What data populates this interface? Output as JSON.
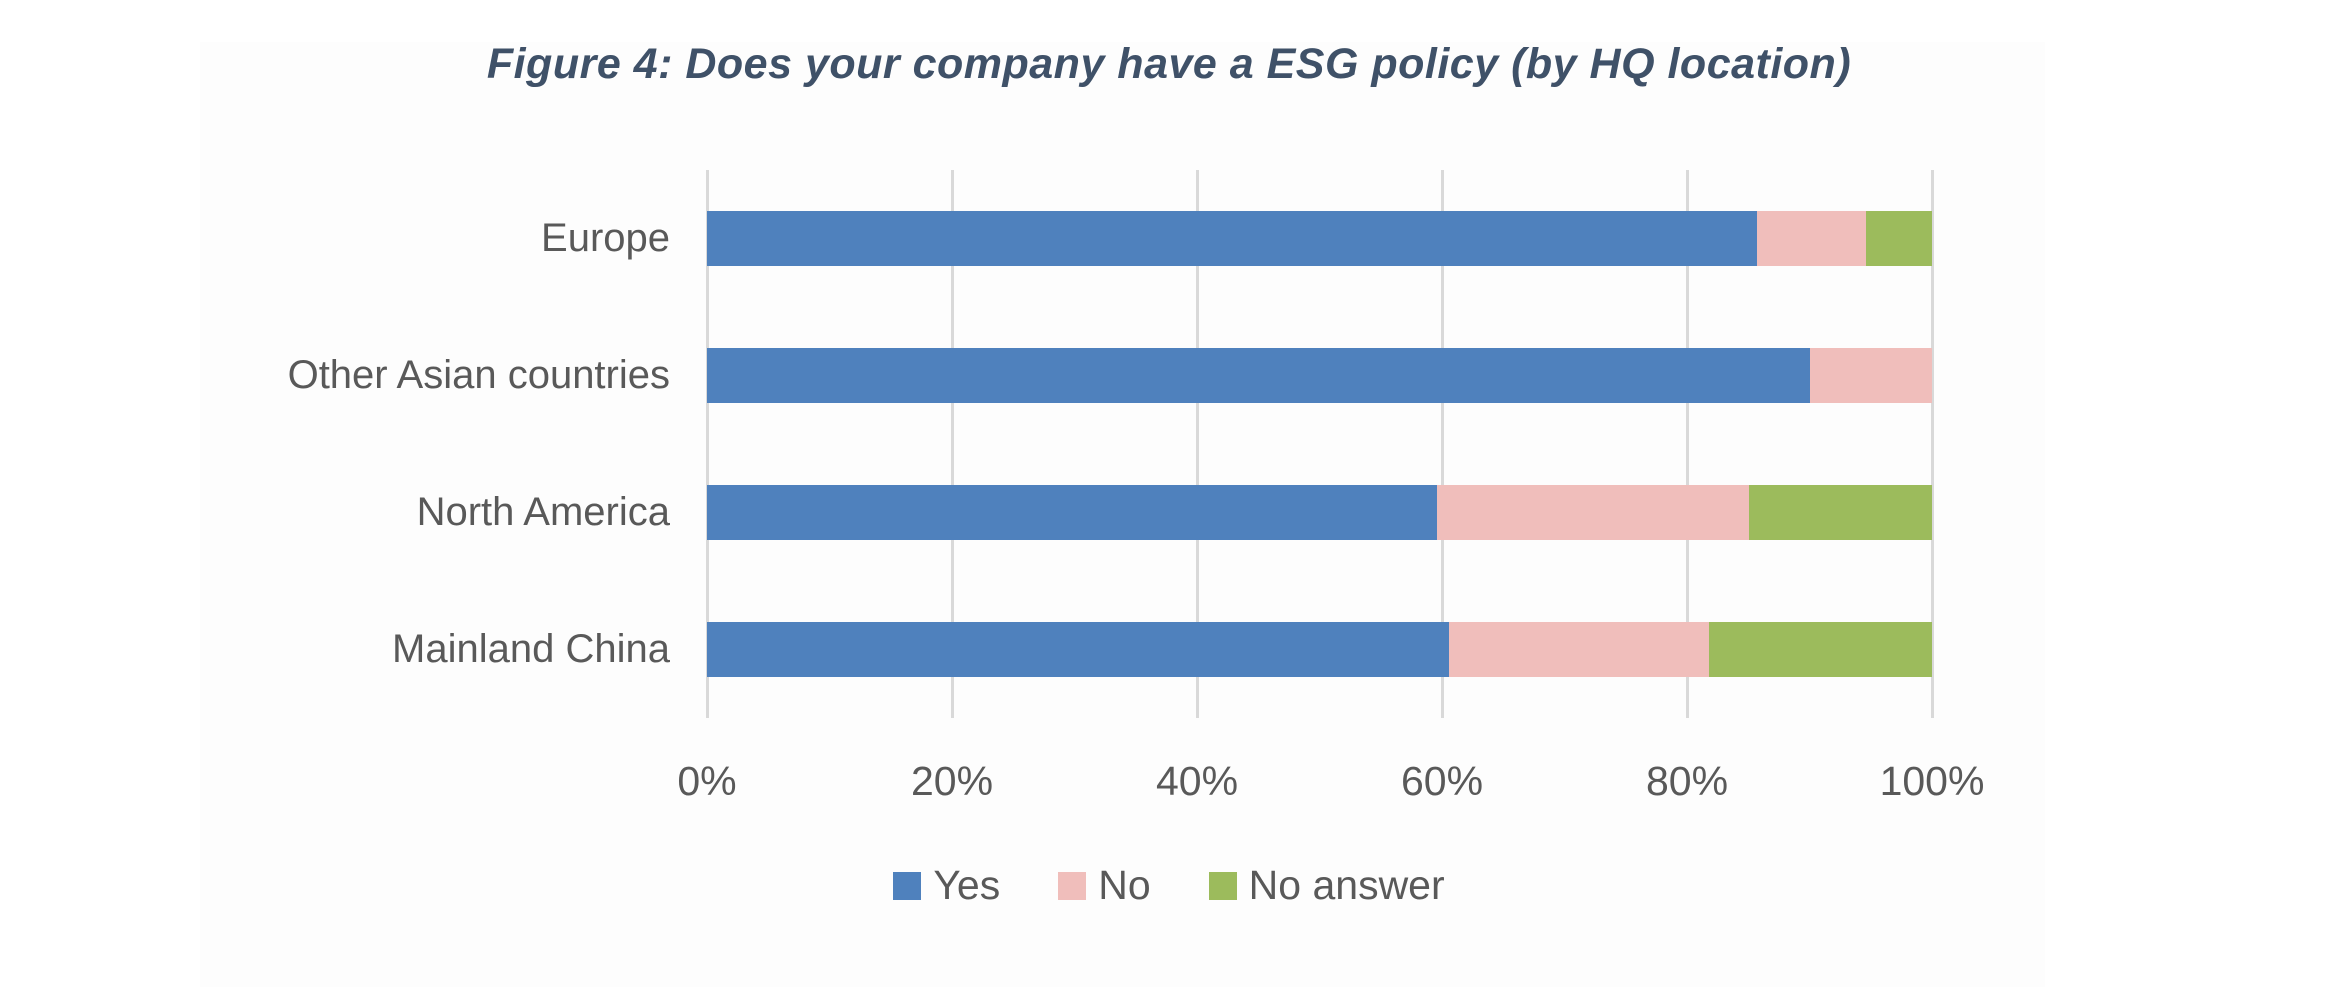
{
  "figure": {
    "title": "Figure 4: Does your company have a ESG policy (by HQ location)"
  },
  "chart_data": {
    "type": "bar",
    "orientation": "horizontal",
    "stacked": true,
    "unit": "percent",
    "title": "Figure 4: Does your company have a ESG policy (by HQ location)",
    "categories": [
      "Europe",
      "Other Asian countries",
      "North America",
      "Mainland China"
    ],
    "series": [
      {
        "name": "Yes",
        "color": "#4f81bd",
        "values": [
          85.7,
          90.0,
          59.6,
          60.6
        ]
      },
      {
        "name": "No",
        "color": "#f0bebb",
        "values": [
          8.9,
          10.0,
          25.5,
          21.2
        ]
      },
      {
        "name": "No answer",
        "color": "#9cbb5c",
        "values": [
          5.4,
          0.0,
          14.9,
          18.2
        ]
      }
    ],
    "x_axis": {
      "min": 0,
      "max": 100,
      "ticks": [
        "0%",
        "20%",
        "40%",
        "60%",
        "80%",
        "100%"
      ],
      "gridlines": true
    },
    "legend_position": "bottom",
    "styles": {
      "gridline_color": "#d9d9d9",
      "axis_text_color": "#595959",
      "title_color": "#3f5168",
      "panel_color": "#fdfdfd"
    }
  }
}
